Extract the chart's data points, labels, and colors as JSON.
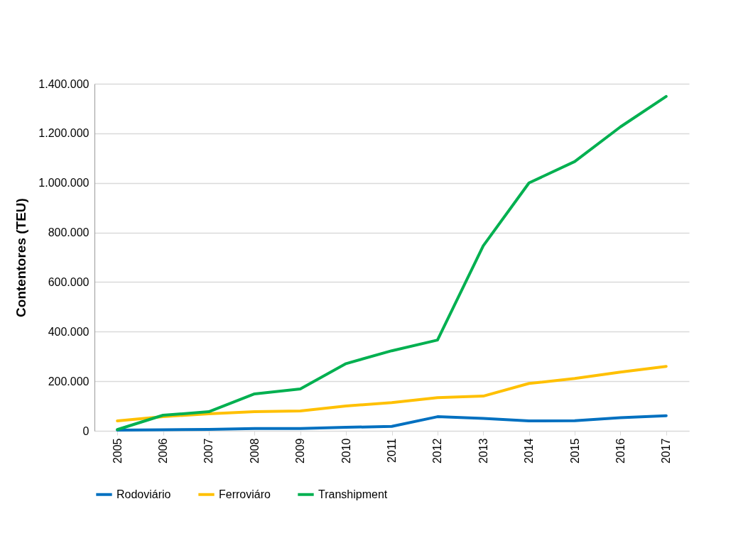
{
  "chart_data": {
    "type": "line",
    "ylabel": "Contentores (TEU)",
    "categories": [
      "2005",
      "2006",
      "2007",
      "2008",
      "2009",
      "2010",
      "2011",
      "2012",
      "2013",
      "2014",
      "2015",
      "2016",
      "2017"
    ],
    "series": [
      {
        "name": "Rodoviário",
        "color": "#0070c0",
        "values": [
          3000,
          4000,
          6000,
          9000,
          9000,
          14000,
          18000,
          57000,
          50000,
          40000,
          41000,
          53000,
          61000
        ]
      },
      {
        "name": "Ferroviáro",
        "color": "#ffc000",
        "values": [
          40000,
          57000,
          69000,
          77000,
          80000,
          100000,
          114000,
          134000,
          140000,
          191000,
          211000,
          237000,
          260000
        ]
      },
      {
        "name": "Transhipment",
        "color": "#00b050",
        "values": [
          5000,
          63000,
          77000,
          149000,
          169000,
          271000,
          323000,
          366000,
          746000,
          1000000,
          1086000,
          1226000,
          1349000
        ]
      }
    ],
    "ylim": [
      0,
      1400000
    ],
    "yticks": [
      {
        "value": 0,
        "label": "0"
      },
      {
        "value": 200000,
        "label": "200.000"
      },
      {
        "value": 400000,
        "label": "400.000"
      },
      {
        "value": 600000,
        "label": "600.000"
      },
      {
        "value": 800000,
        "label": "800.000"
      },
      {
        "value": 1000000,
        "label": "1.000.000"
      },
      {
        "value": 1200000,
        "label": "1.200.000"
      },
      {
        "value": 1400000,
        "label": "1.400.000"
      }
    ],
    "grid": "y",
    "legend": "bottom",
    "marker": "none",
    "line_style": "solid"
  }
}
